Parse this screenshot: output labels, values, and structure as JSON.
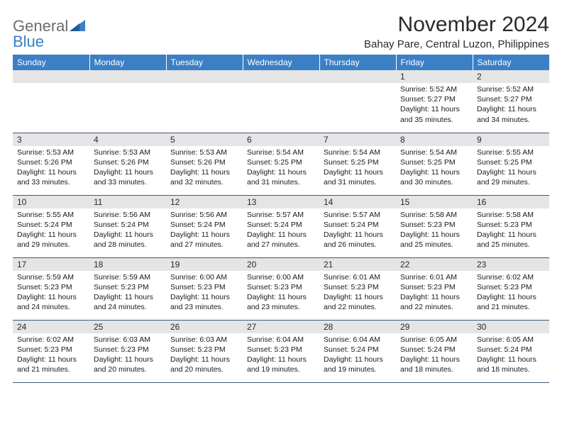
{
  "logo": {
    "general": "General",
    "blue": "Blue"
  },
  "header": {
    "month_title": "November 2024",
    "location": "Bahay Pare, Central Luzon, Philippines"
  },
  "colors": {
    "header_bg": "#3b7fc4",
    "header_text": "#ffffff",
    "daynum_bg": "#e5e5e5",
    "border": "#3b5a7a"
  },
  "day_names": [
    "Sunday",
    "Monday",
    "Tuesday",
    "Wednesday",
    "Thursday",
    "Friday",
    "Saturday"
  ],
  "weeks": [
    [
      null,
      null,
      null,
      null,
      null,
      {
        "n": "1",
        "sr": "5:52 AM",
        "ss": "5:27 PM",
        "dl": "11 hours and 35 minutes."
      },
      {
        "n": "2",
        "sr": "5:52 AM",
        "ss": "5:27 PM",
        "dl": "11 hours and 34 minutes."
      }
    ],
    [
      {
        "n": "3",
        "sr": "5:53 AM",
        "ss": "5:26 PM",
        "dl": "11 hours and 33 minutes."
      },
      {
        "n": "4",
        "sr": "5:53 AM",
        "ss": "5:26 PM",
        "dl": "11 hours and 33 minutes."
      },
      {
        "n": "5",
        "sr": "5:53 AM",
        "ss": "5:26 PM",
        "dl": "11 hours and 32 minutes."
      },
      {
        "n": "6",
        "sr": "5:54 AM",
        "ss": "5:25 PM",
        "dl": "11 hours and 31 minutes."
      },
      {
        "n": "7",
        "sr": "5:54 AM",
        "ss": "5:25 PM",
        "dl": "11 hours and 31 minutes."
      },
      {
        "n": "8",
        "sr": "5:54 AM",
        "ss": "5:25 PM",
        "dl": "11 hours and 30 minutes."
      },
      {
        "n": "9",
        "sr": "5:55 AM",
        "ss": "5:25 PM",
        "dl": "11 hours and 29 minutes."
      }
    ],
    [
      {
        "n": "10",
        "sr": "5:55 AM",
        "ss": "5:24 PM",
        "dl": "11 hours and 29 minutes."
      },
      {
        "n": "11",
        "sr": "5:56 AM",
        "ss": "5:24 PM",
        "dl": "11 hours and 28 minutes."
      },
      {
        "n": "12",
        "sr": "5:56 AM",
        "ss": "5:24 PM",
        "dl": "11 hours and 27 minutes."
      },
      {
        "n": "13",
        "sr": "5:57 AM",
        "ss": "5:24 PM",
        "dl": "11 hours and 27 minutes."
      },
      {
        "n": "14",
        "sr": "5:57 AM",
        "ss": "5:24 PM",
        "dl": "11 hours and 26 minutes."
      },
      {
        "n": "15",
        "sr": "5:58 AM",
        "ss": "5:23 PM",
        "dl": "11 hours and 25 minutes."
      },
      {
        "n": "16",
        "sr": "5:58 AM",
        "ss": "5:23 PM",
        "dl": "11 hours and 25 minutes."
      }
    ],
    [
      {
        "n": "17",
        "sr": "5:59 AM",
        "ss": "5:23 PM",
        "dl": "11 hours and 24 minutes."
      },
      {
        "n": "18",
        "sr": "5:59 AM",
        "ss": "5:23 PM",
        "dl": "11 hours and 24 minutes."
      },
      {
        "n": "19",
        "sr": "6:00 AM",
        "ss": "5:23 PM",
        "dl": "11 hours and 23 minutes."
      },
      {
        "n": "20",
        "sr": "6:00 AM",
        "ss": "5:23 PM",
        "dl": "11 hours and 23 minutes."
      },
      {
        "n": "21",
        "sr": "6:01 AM",
        "ss": "5:23 PM",
        "dl": "11 hours and 22 minutes."
      },
      {
        "n": "22",
        "sr": "6:01 AM",
        "ss": "5:23 PM",
        "dl": "11 hours and 22 minutes."
      },
      {
        "n": "23",
        "sr": "6:02 AM",
        "ss": "5:23 PM",
        "dl": "11 hours and 21 minutes."
      }
    ],
    [
      {
        "n": "24",
        "sr": "6:02 AM",
        "ss": "5:23 PM",
        "dl": "11 hours and 21 minutes."
      },
      {
        "n": "25",
        "sr": "6:03 AM",
        "ss": "5:23 PM",
        "dl": "11 hours and 20 minutes."
      },
      {
        "n": "26",
        "sr": "6:03 AM",
        "ss": "5:23 PM",
        "dl": "11 hours and 20 minutes."
      },
      {
        "n": "27",
        "sr": "6:04 AM",
        "ss": "5:23 PM",
        "dl": "11 hours and 19 minutes."
      },
      {
        "n": "28",
        "sr": "6:04 AM",
        "ss": "5:24 PM",
        "dl": "11 hours and 19 minutes."
      },
      {
        "n": "29",
        "sr": "6:05 AM",
        "ss": "5:24 PM",
        "dl": "11 hours and 18 minutes."
      },
      {
        "n": "30",
        "sr": "6:05 AM",
        "ss": "5:24 PM",
        "dl": "11 hours and 18 minutes."
      }
    ]
  ],
  "labels": {
    "sunrise": "Sunrise:",
    "sunset": "Sunset:",
    "daylight": "Daylight:"
  }
}
